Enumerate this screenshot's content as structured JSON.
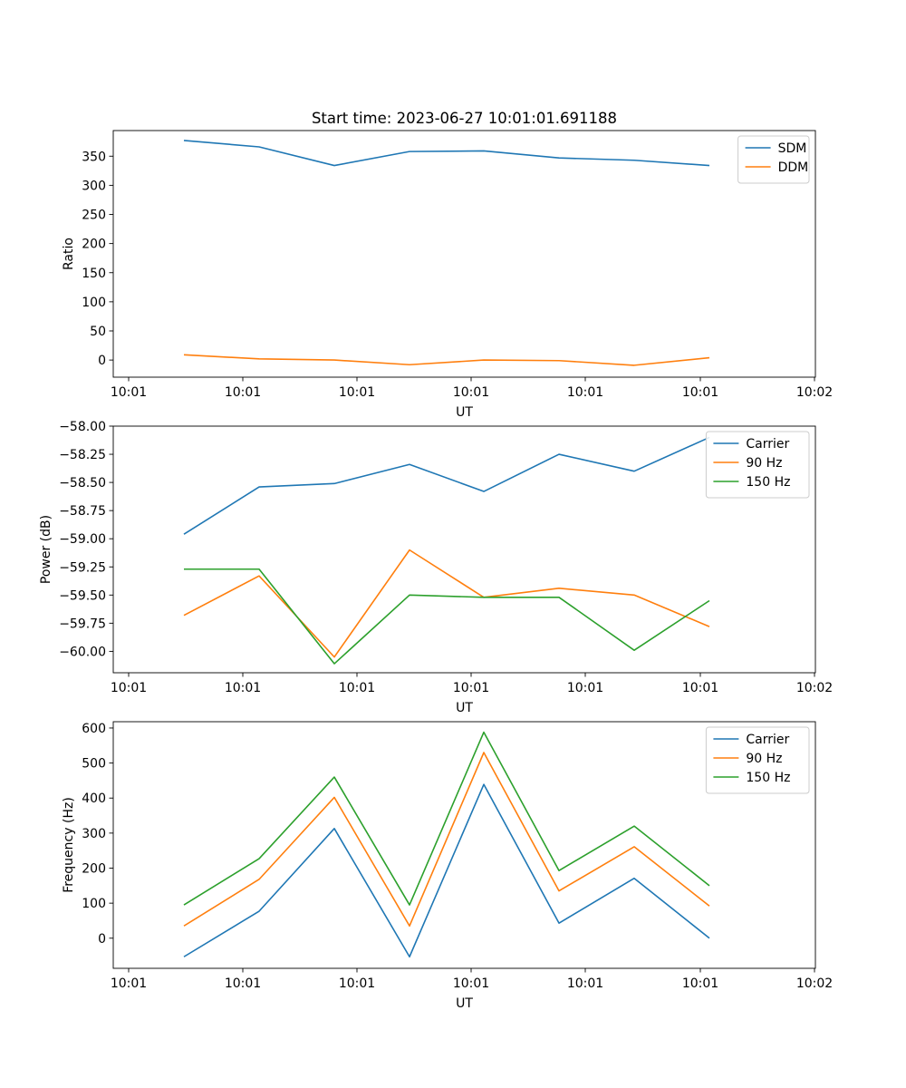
{
  "figure": {
    "title": "Start time: 2023-06-27 10:01:01.691188"
  },
  "chart_data": [
    {
      "type": "line",
      "ylabel": "Ratio",
      "xlabel": "UT",
      "x_tick_labels": [
        "10:01",
        "10:01",
        "10:01",
        "10:01",
        "10:01",
        "10:01",
        "10:02"
      ],
      "y_ticks": [
        0,
        50,
        100,
        150,
        200,
        250,
        300,
        350
      ],
      "y_tick_labels": [
        "0",
        "50",
        "100",
        "150",
        "200",
        "250",
        "300",
        "350"
      ],
      "ylim": [
        -29.4,
        394
      ],
      "legend_position": "upper right",
      "series": [
        {
          "name": "SDM",
          "color": "#1f77b4",
          "values": [
            377,
            366,
            334,
            358,
            359,
            347,
            343,
            334
          ]
        },
        {
          "name": "DDM",
          "color": "#ff7f0e",
          "values": [
            9,
            2,
            0,
            -8,
            0,
            -1,
            -9,
            4
          ]
        }
      ]
    },
    {
      "type": "line",
      "ylabel": "Power (dB)",
      "xlabel": "UT",
      "x_tick_labels": [
        "10:01",
        "10:01",
        "10:01",
        "10:01",
        "10:01",
        "10:01",
        "10:02"
      ],
      "y_ticks": [
        -60.0,
        -59.75,
        -59.5,
        -59.25,
        -59.0,
        -58.75,
        -58.5,
        -58.25,
        -58.0
      ],
      "y_tick_labels": [
        "−60.00",
        "−59.75",
        "−59.50",
        "−59.25",
        "−59.00",
        "−58.75",
        "−58.50",
        "−58.25",
        "−58.00"
      ],
      "ylim": [
        -60.19,
        -58.0
      ],
      "legend_position": "upper right",
      "series": [
        {
          "name": "Carrier",
          "color": "#1f77b4",
          "values": [
            -58.96,
            -58.54,
            -58.51,
            -58.34,
            -58.58,
            -58.25,
            -58.4,
            -58.1
          ]
        },
        {
          "name": "90 Hz",
          "color": "#ff7f0e",
          "values": [
            -59.68,
            -59.33,
            -60.05,
            -59.1,
            -59.52,
            -59.44,
            -59.5,
            -59.78
          ]
        },
        {
          "name": "150 Hz",
          "color": "#2ca02c",
          "values": [
            -59.27,
            -59.27,
            -60.11,
            -59.5,
            -59.52,
            -59.52,
            -59.99,
            -59.55
          ]
        }
      ]
    },
    {
      "type": "line",
      "ylabel": "Frequency (Hz)",
      "xlabel": "UT",
      "x_tick_labels": [
        "10:01",
        "10:01",
        "10:01",
        "10:01",
        "10:01",
        "10:01",
        "10:02"
      ],
      "y_ticks": [
        0,
        100,
        200,
        300,
        400,
        500,
        600
      ],
      "y_tick_labels": [
        "0",
        "100",
        "200",
        "300",
        "400",
        "500",
        "600"
      ],
      "ylim": [
        -86,
        618
      ],
      "legend_position": "upper right",
      "series": [
        {
          "name": "Carrier",
          "color": "#1f77b4",
          "values": [
            -53,
            77,
            313,
            -53,
            439,
            43,
            171,
            0
          ]
        },
        {
          "name": "90 Hz",
          "color": "#ff7f0e",
          "values": [
            35,
            168,
            402,
            35,
            530,
            135,
            261,
            92
          ]
        },
        {
          "name": "150 Hz",
          "color": "#2ca02c",
          "values": [
            95,
            227,
            460,
            95,
            588,
            193,
            320,
            150
          ]
        }
      ]
    }
  ]
}
